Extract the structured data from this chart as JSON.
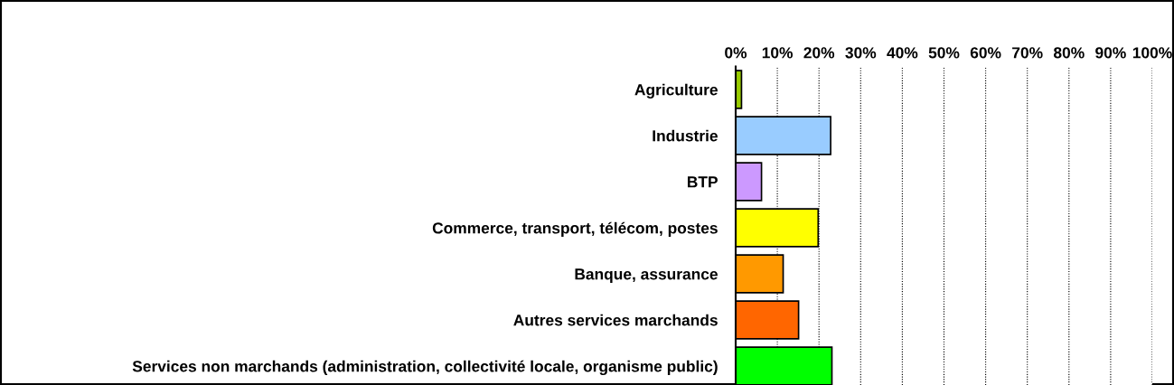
{
  "chart_data": {
    "type": "bar",
    "orientation": "horizontal",
    "categories": [
      "Agriculture",
      "Industrie",
      "BTP",
      "Commerce, transport, télécom, postes",
      "Banque, assurance",
      "Autres services marchands",
      "Services non marchands (administration, collectivité locale, organisme public)"
    ],
    "values": [
      1.4,
      22.8,
      6.2,
      19.8,
      11.4,
      15.1,
      23.1
    ],
    "colors": [
      "#99cc00",
      "#99ccff",
      "#cc99ff",
      "#ffff00",
      "#ff9900",
      "#ff6600",
      "#00ff00"
    ],
    "xlim": [
      0,
      100
    ],
    "xticks": [
      {
        "value": 0,
        "label": "0%"
      },
      {
        "value": 10,
        "label": "10%"
      },
      {
        "value": 20,
        "label": "20%"
      },
      {
        "value": 30,
        "label": "30%"
      },
      {
        "value": 40,
        "label": "40%"
      },
      {
        "value": 50,
        "label": "50%"
      },
      {
        "value": 60,
        "label": "60%"
      },
      {
        "value": 70,
        "label": "70%"
      },
      {
        "value": 80,
        "label": "80%"
      },
      {
        "value": 90,
        "label": "90%"
      },
      {
        "value": 100,
        "label": "100%"
      }
    ],
    "grid": "x"
  }
}
